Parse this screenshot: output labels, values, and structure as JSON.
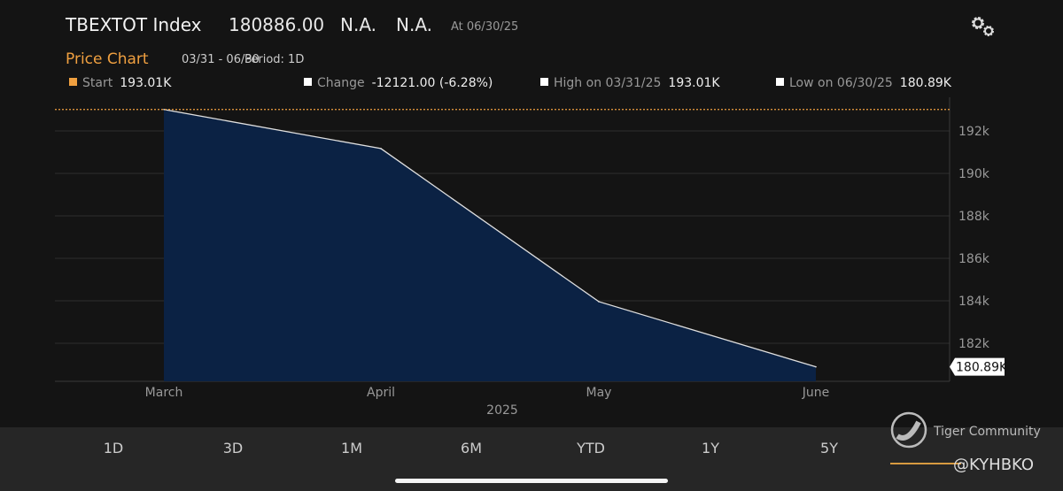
{
  "header": {
    "ticker": "TBEXTOT  Index",
    "price": "180886.00",
    "field1": "N.A.",
    "field2": "N.A.",
    "as_of": "At 06/30/25"
  },
  "price_chart": {
    "title": "Price Chart",
    "range": "03/31 - 06/30",
    "period": "Period: 1D"
  },
  "stats": [
    {
      "label": "Start",
      "value": "193.01K",
      "color": "#f0a040"
    },
    {
      "label": "Change",
      "value": "-12121.00 (-6.28%)",
      "color": "#ffffff"
    },
    {
      "label": "High on 03/31/25",
      "value": "193.01K",
      "color": "#ffffff"
    },
    {
      "label": "Low on 06/30/25",
      "value": "180.89K",
      "color": "#ffffff"
    }
  ],
  "chart_data": {
    "type": "area",
    "x": [
      "03/31/25",
      "04/30/25",
      "05/30/25",
      "06/30/25"
    ],
    "values": [
      193.01,
      191.17,
      183.96,
      180.89
    ],
    "x_tick_labels": [
      "March",
      "April",
      "May",
      "June"
    ],
    "xlabel": "2025",
    "y_tick_labels": [
      "182k",
      "184k",
      "186k",
      "188k",
      "190k",
      "192k"
    ],
    "y_ticks": [
      182,
      184,
      186,
      188,
      190,
      192
    ],
    "ylim": [
      180.2,
      193.5
    ],
    "y_unit": "k",
    "reference_line": {
      "value": 193.01,
      "color": "#f0a040",
      "style": "dotted"
    },
    "last_value_label": "180.89K",
    "fill_color": "#0b2244",
    "line_color": "#e0e0e0",
    "grid": true,
    "y_axis_position": "right"
  },
  "period_tabs": [
    "1D",
    "3D",
    "1M",
    "6M",
    "YTD",
    "1Y",
    "5Y"
  ],
  "watermark": {
    "text": "Tiger Community",
    "handle": "@KYHBKO"
  }
}
